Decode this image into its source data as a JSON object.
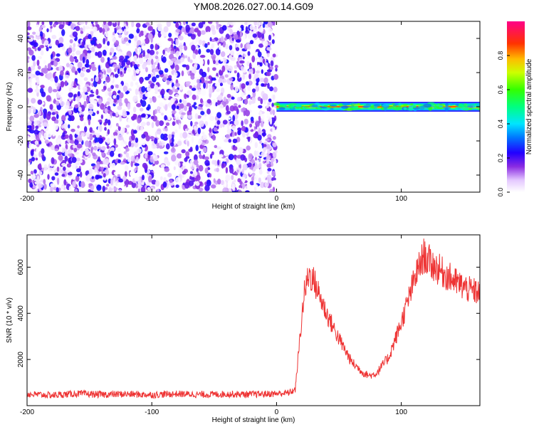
{
  "title": "YM08.2026.027.00.14.G09",
  "chart_data": [
    {
      "type": "heatmap",
      "xlabel": "Height of straight line (km)",
      "ylabel": "Frequency (Hz)",
      "xlim": [
        -200,
        163
      ],
      "ylim": [
        -50,
        50
      ],
      "x_ticks": [
        -200,
        -100,
        0,
        100
      ],
      "y_ticks": [
        -40,
        -20,
        0,
        20,
        40
      ],
      "description_regions": [
        {
          "x_range": [
            -200,
            0
          ],
          "y_range": [
            -50,
            50
          ],
          "pattern": "broadband noise",
          "amplitude_range": [
            0.0,
            0.25
          ]
        },
        {
          "x_range": [
            0,
            163
          ],
          "y_range": [
            -5,
            5
          ],
          "pattern": "narrow band at 0 Hz",
          "amplitude_range": [
            0.3,
            0.9
          ]
        }
      ],
      "colorbar": {
        "label": "Normalized spectral amplitude",
        "range": [
          0,
          1
        ],
        "ticks": [
          0.0,
          0.2,
          0.4,
          0.6,
          0.8
        ],
        "tick_labels": [
          "0.0",
          "0.2",
          "0.4",
          "0.6",
          "0.8"
        ]
      },
      "grid": false
    },
    {
      "type": "line",
      "xlabel": "Height of straight line (km)",
      "ylabel": "SNR (10 * v/v)",
      "xlim": [
        -200,
        163
      ],
      "ylim": [
        0,
        7400
      ],
      "x_ticks": [
        -200,
        -100,
        0,
        100
      ],
      "y_ticks": [
        2000,
        4000,
        6000
      ],
      "series": [
        {
          "color": "#ee3333",
          "x": [
            -200,
            -180,
            -160,
            -140,
            -120,
            -100,
            -80,
            -60,
            -40,
            -20,
            0,
            10,
            15,
            18,
            22,
            26,
            30,
            35,
            40,
            50,
            60,
            70,
            75,
            80,
            90,
            100,
            108,
            112,
            118,
            125,
            135,
            145,
            155,
            163
          ],
          "y": [
            500,
            450,
            520,
            480,
            500,
            470,
            510,
            480,
            500,
            490,
            520,
            560,
            700,
            2500,
            4800,
            5700,
            5400,
            4700,
            4000,
            2900,
            1900,
            1400,
            1300,
            1400,
            2100,
            3600,
            5000,
            5700,
            6500,
            6100,
            5700,
            5300,
            5000,
            4900
          ]
        }
      ],
      "grid": false
    }
  ]
}
